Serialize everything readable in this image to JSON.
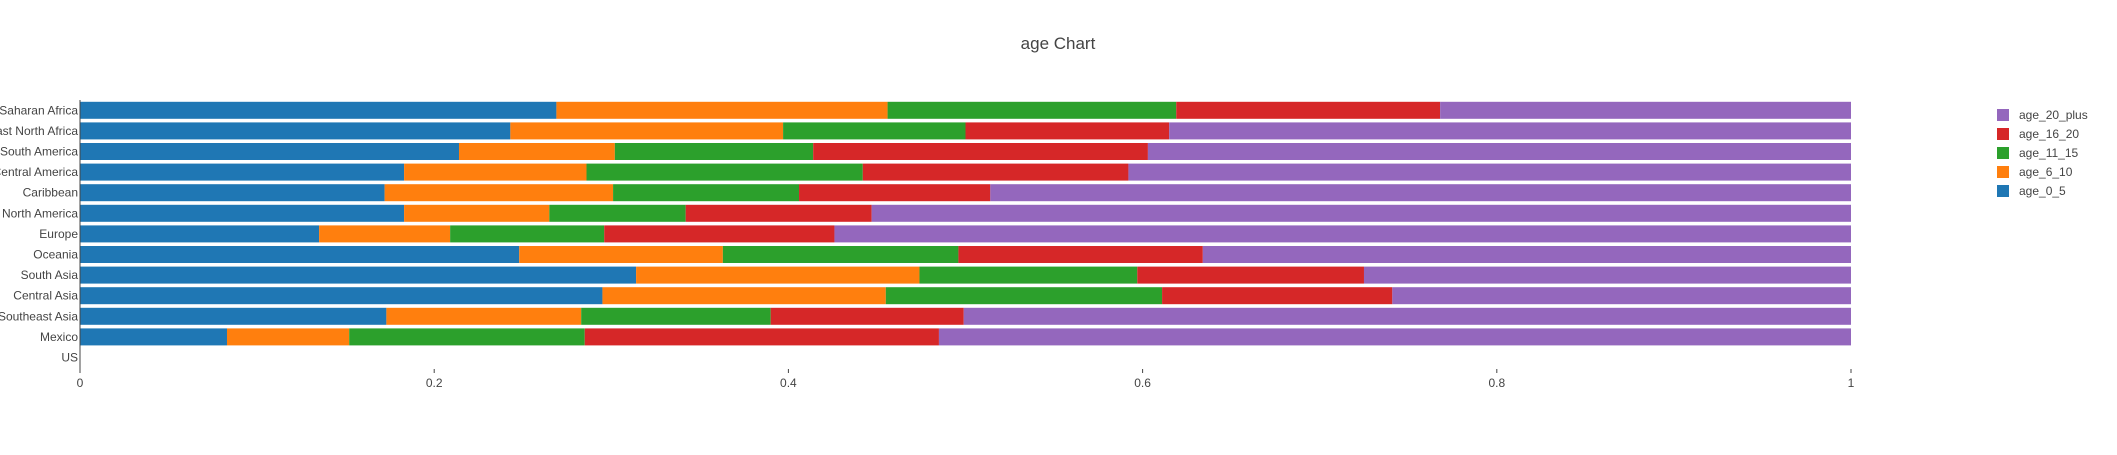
{
  "chart_data": {
    "type": "bar",
    "orientation": "horizontal",
    "stacked": true,
    "title": "age Chart",
    "xlabel": "",
    "ylabel": "",
    "xlim": [
      0,
      1
    ],
    "x_ticks": [
      "0",
      "0.2",
      "0.4",
      "0.6",
      "0.8",
      "1"
    ],
    "grid": false,
    "legend_position": "right",
    "categories": [
      "Sub-Saharan Africa",
      "Middle East North Africa",
      "South America",
      "Central America",
      "Caribbean",
      "North America",
      "Europe",
      "Oceania",
      "South Asia",
      "Central Asia",
      "Southeast Asia",
      "Mexico",
      "US"
    ],
    "series": [
      {
        "name": "age_0_5",
        "color": "#1f77b4",
        "values": [
          0.269,
          0.243,
          0.214,
          0.183,
          0.172,
          0.183,
          0.135,
          0.248,
          0.314,
          0.295,
          0.173,
          0.083,
          0
        ]
      },
      {
        "name": "age_6_10",
        "color": "#ff7f0e",
        "values": [
          0.187,
          0.154,
          0.088,
          0.103,
          0.129,
          0.082,
          0.074,
          0.115,
          0.16,
          0.16,
          0.11,
          0.069,
          0
        ]
      },
      {
        "name": "age_11_15",
        "color": "#2ca02c",
        "values": [
          0.163,
          0.103,
          0.112,
          0.156,
          0.105,
          0.077,
          0.087,
          0.133,
          0.123,
          0.156,
          0.107,
          0.133,
          0
        ]
      },
      {
        "name": "age_16_20",
        "color": "#d62728",
        "values": [
          0.149,
          0.115,
          0.189,
          0.15,
          0.108,
          0.105,
          0.13,
          0.138,
          0.128,
          0.13,
          0.109,
          0.2,
          0
        ]
      },
      {
        "name": "age_20_plus",
        "color": "#9467bd",
        "values": [
          0.232,
          0.385,
          0.397,
          0.408,
          0.486,
          0.553,
          0.574,
          0.366,
          0.275,
          0.259,
          0.501,
          0.515,
          0
        ]
      }
    ]
  }
}
